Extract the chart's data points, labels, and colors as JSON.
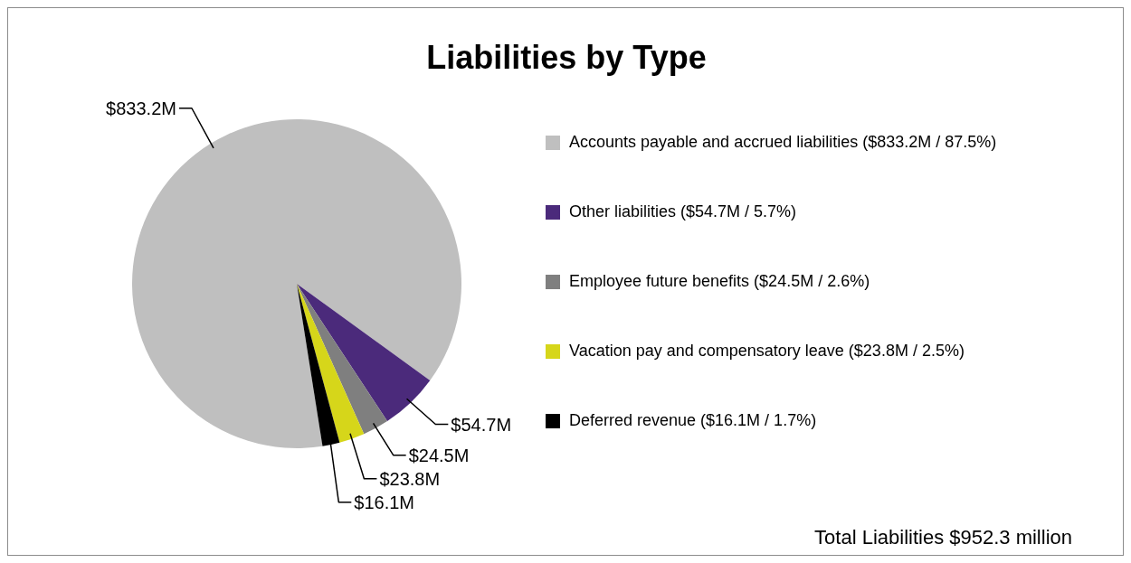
{
  "chart_data": {
    "type": "pie",
    "title": "Liabilities by Type",
    "categories": [
      "Accounts payable and accrued liabilities  ($833.2M / 87.5%)",
      "Other liabilities  ($54.7M / 5.7%)",
      "Employee future benefits ($24.5M / 2.6%)",
      "Vacation pay and compensatory leave ($23.8M / 2.5%)",
      "Deferred revenue ($16.1M / 1.7%)"
    ],
    "values": [
      833.2,
      54.7,
      24.5,
      23.8,
      16.1
    ],
    "value_labels": [
      "$833.2M",
      "$54.7M",
      "$24.5M",
      "$23.8M",
      "$16.1M"
    ],
    "colors": [
      "#bfbfbf",
      "#4b2a7b",
      "#7f7f7f",
      "#d6d61a",
      "#000000"
    ],
    "legend": "right",
    "annotations": [
      "Total Liabilities $952.3 million"
    ]
  }
}
